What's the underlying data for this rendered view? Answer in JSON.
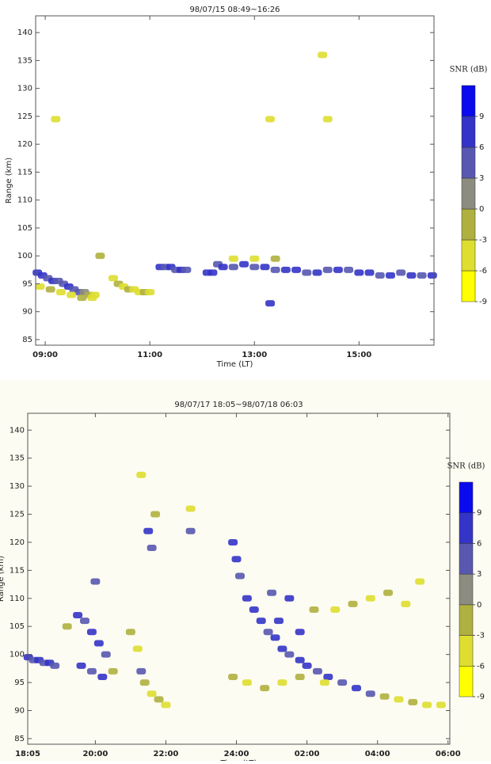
{
  "chart_data": [
    {
      "type": "rti",
      "title": "98/07/15 08:49~16:26",
      "xlabel": "Time (LT)",
      "ylabel": "Range (km)",
      "xlim": [
        8.817,
        16.433
      ],
      "xticks": [
        {
          "value": 9,
          "label": "09:00"
        },
        {
          "value": 11,
          "label": "11:00"
        },
        {
          "value": 13,
          "label": "13:00"
        },
        {
          "value": 15,
          "label": "15:00"
        }
      ],
      "ylim": [
        84,
        143
      ],
      "yticks": [
        85,
        90,
        95,
        100,
        105,
        110,
        115,
        120,
        125,
        130,
        135,
        140
      ],
      "colorbar": {
        "title": "SNR (dB)",
        "lim": [
          -9,
          12
        ],
        "ticks": [
          -9,
          -6,
          -3,
          0,
          3,
          6,
          9
        ],
        "colors": [
          "#ffff00",
          "#dede30",
          "#b0b040",
          "#8c8c80",
          "#5858b0",
          "#3434c8",
          "#0a0aee"
        ]
      },
      "echoes": {
        "x": [
          8.85,
          8.95,
          9.05,
          9.15,
          9.25,
          9.35,
          9.45,
          9.55,
          9.65,
          9.75,
          9.85,
          9.95,
          8.9,
          9.1,
          9.3,
          9.5,
          9.7,
          9.9,
          10.3,
          10.4,
          10.5,
          10.6,
          10.7,
          10.8,
          10.9,
          11.0,
          11.2,
          11.3,
          11.4,
          11.5,
          11.6,
          11.7,
          12.1,
          12.2,
          12.3,
          12.4,
          12.6,
          12.8,
          13.0,
          13.2,
          13.4,
          13.6,
          13.8,
          14.0,
          14.2,
          14.4,
          14.6,
          14.8,
          15.0,
          15.2,
          15.4,
          15.6,
          15.8,
          16.0,
          16.2,
          16.4,
          12.6,
          13.0,
          13.4,
          9.2,
          13.3,
          14.3,
          14.4,
          13.3,
          10.05
        ],
        "y": [
          97,
          96.5,
          96,
          95.5,
          95.5,
          95,
          94.5,
          94,
          93.5,
          93.5,
          93,
          93,
          94.5,
          94,
          93.5,
          93,
          92.5,
          92.5,
          96,
          95,
          94.5,
          94,
          94,
          93.5,
          93.5,
          93.5,
          98,
          98,
          98,
          97.5,
          97.5,
          97.5,
          97,
          97,
          98.5,
          98,
          98,
          98.5,
          98,
          98,
          97.5,
          97.5,
          97.5,
          97,
          97,
          97.5,
          97.5,
          97.5,
          97,
          97,
          96.5,
          96.5,
          97,
          96.5,
          96.5,
          96.5,
          99.5,
          99.5,
          99.5,
          124.5,
          124.5,
          136,
          124.5,
          91.5,
          100
        ],
        "snr": [
          6,
          6,
          3,
          6,
          3,
          3,
          6,
          3,
          3,
          0,
          -3,
          -6,
          -6,
          -3,
          -6,
          -6,
          -3,
          -6,
          -6,
          -3,
          -6,
          -3,
          -6,
          -6,
          -3,
          -6,
          6,
          3,
          6,
          3,
          6,
          3,
          6,
          6,
          3,
          6,
          3,
          6,
          3,
          6,
          3,
          6,
          6,
          3,
          6,
          3,
          6,
          3,
          6,
          6,
          3,
          6,
          3,
          6,
          3,
          6,
          -6,
          -6,
          -3,
          -6,
          -6,
          -6,
          -6,
          6,
          -3
        ]
      }
    },
    {
      "type": "rti",
      "title": "98/07/17 18:05~98/07/18 06:03",
      "xlabel": "Time (LT)",
      "ylabel": "Range (km)",
      "xlim": [
        18.083,
        30.05
      ],
      "xticks": [
        {
          "value": 18.083,
          "label": "18:05"
        },
        {
          "value": 20,
          "label": "20:00"
        },
        {
          "value": 22,
          "label": "22:00"
        },
        {
          "value": 24,
          "label": "24:00"
        },
        {
          "value": 26,
          "label": "02:00"
        },
        {
          "value": 28,
          "label": "04:00"
        },
        {
          "value": 30,
          "label": "06:00"
        }
      ],
      "ylim": [
        84,
        143
      ],
      "yticks": [
        85,
        90,
        95,
        100,
        105,
        110,
        115,
        120,
        125,
        130,
        135,
        140
      ],
      "colorbar": {
        "title": "SNR (dB)",
        "lim": [
          -9,
          12
        ],
        "ticks": [
          -9,
          -6,
          -3,
          0,
          3,
          6,
          9
        ],
        "colors": [
          "#ffff00",
          "#dede30",
          "#b0b040",
          "#8c8c80",
          "#5858b0",
          "#3434c8",
          "#0a0aee"
        ]
      },
      "echoes": {
        "x": [
          18.1,
          18.25,
          18.4,
          18.55,
          18.7,
          18.85,
          19.2,
          19.5,
          19.7,
          19.9,
          20.1,
          20.3,
          19.6,
          19.9,
          20.2,
          20.5,
          20.0,
          21.0,
          21.2,
          21.3,
          21.4,
          21.6,
          21.8,
          22.0,
          21.3,
          21.5,
          21.6,
          21.7,
          22.7,
          22.7,
          23.9,
          24.0,
          24.1,
          24.3,
          24.5,
          24.7,
          24.9,
          25.1,
          25.3,
          25.5,
          25.8,
          26.0,
          26.3,
          26.6,
          27.0,
          27.4,
          27.8,
          28.2,
          28.6,
          29.0,
          29.4,
          29.8,
          23.9,
          24.3,
          24.8,
          25.3,
          25.8,
          26.5,
          25.0,
          25.5,
          26.2,
          26.8,
          27.3,
          27.8,
          28.3,
          28.8,
          29.2,
          25.2,
          25.8
        ],
        "y": [
          99.5,
          99,
          99,
          98.5,
          98.5,
          98,
          105,
          107,
          106,
          104,
          102,
          100,
          98,
          97,
          96,
          97,
          113,
          104,
          101,
          97,
          95,
          93,
          92,
          91,
          132,
          122,
          119,
          125,
          122,
          126,
          120,
          117,
          114,
          110,
          108,
          106,
          104,
          103,
          101,
          100,
          99,
          98,
          97,
          96,
          95,
          94,
          93,
          92.5,
          92,
          91.5,
          91,
          91,
          96,
          95,
          94,
          95,
          96,
          95,
          111,
          110,
          108,
          108,
          109,
          110,
          111,
          109,
          113,
          106,
          104
        ],
        "snr": [
          6,
          3,
          6,
          3,
          6,
          3,
          -3,
          6,
          3,
          6,
          6,
          3,
          6,
          3,
          6,
          -3,
          3,
          -3,
          -6,
          3,
          -3,
          -6,
          -3,
          -6,
          -6,
          6,
          3,
          -3,
          3,
          -6,
          6,
          6,
          3,
          6,
          6,
          6,
          3,
          6,
          6,
          3,
          6,
          6,
          3,
          6,
          3,
          6,
          3,
          -3,
          -6,
          -3,
          -6,
          -6,
          -3,
          -6,
          -3,
          -6,
          -3,
          -6,
          3,
          6,
          -3,
          -6,
          -3,
          -6,
          -3,
          -6,
          -6,
          6,
          6
        ]
      }
    }
  ]
}
